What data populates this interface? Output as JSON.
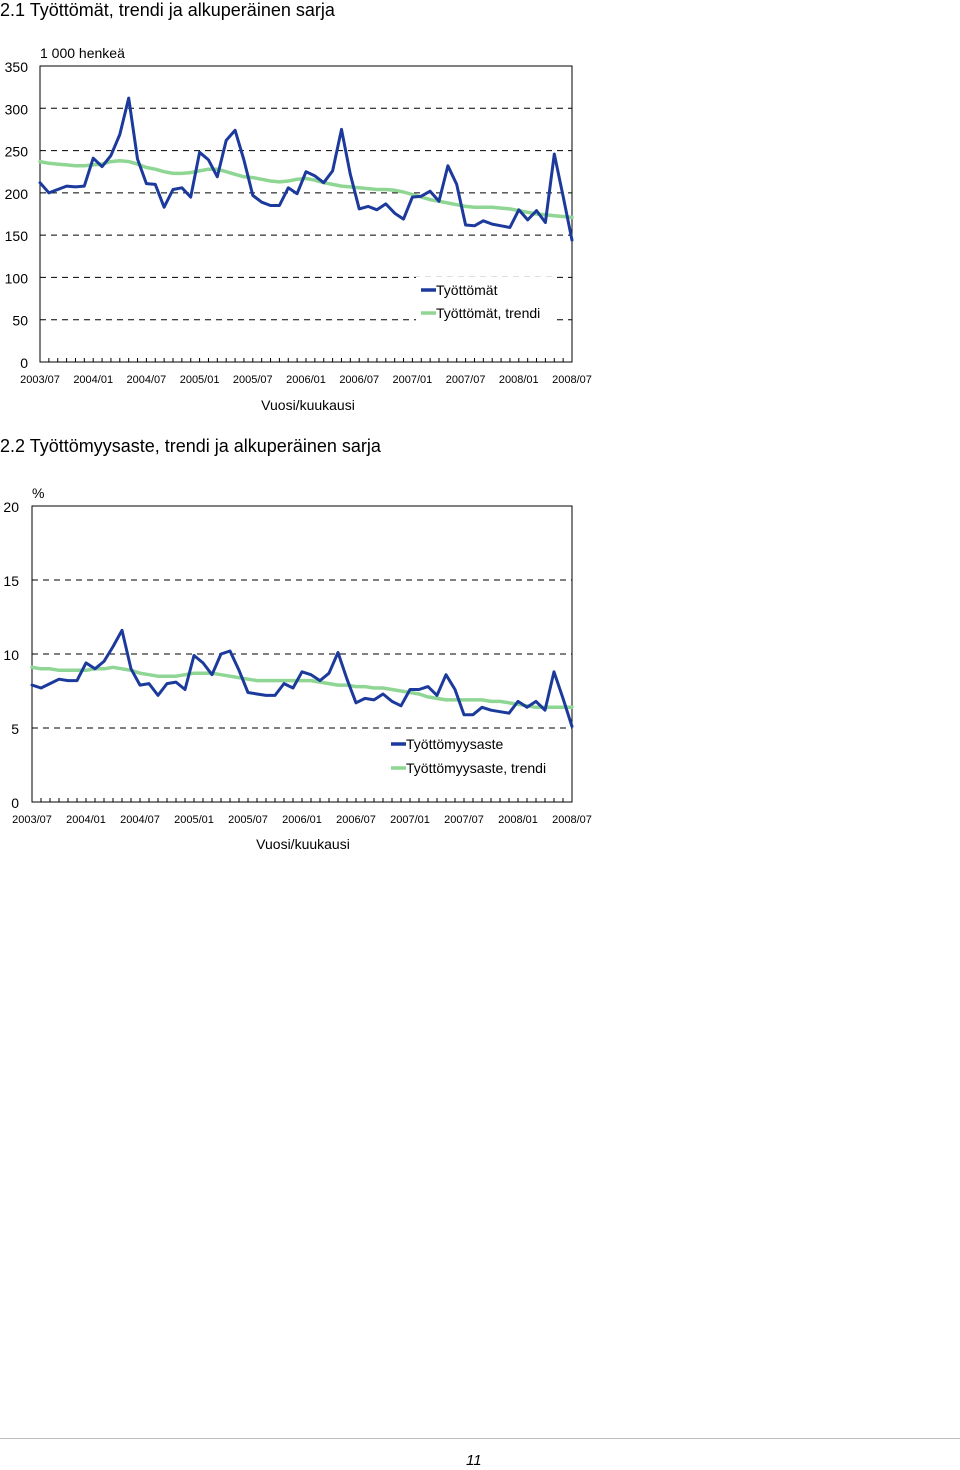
{
  "headings": {
    "chart1": "2.1 Työttömät, trendi ja alkuperäinen sarja",
    "chart2": "2.2 Työttömyysaste, trendi ja alkuperäinen sarja"
  },
  "page_number": "11",
  "colors": {
    "original": "#1b3a9c",
    "trend": "#8fd694",
    "grid": "#000000"
  },
  "chart_data": [
    {
      "type": "line",
      "title": "2.1 Työttömät, trendi ja alkuperäinen sarja",
      "ylabel": "1 000 henkeä",
      "xlabel": "Vuosi/kuukausi",
      "ylim": [
        0,
        350
      ],
      "yticks": [
        0,
        50,
        100,
        150,
        200,
        250,
        300,
        350
      ],
      "x_tick_labels": [
        "2003/07",
        "2004/01",
        "2004/07",
        "2005/01",
        "2005/07",
        "2006/01",
        "2006/07",
        "2007/01",
        "2007/07",
        "2008/01",
        "2008/07"
      ],
      "x_start": "2003/07",
      "x_end": "2008/07",
      "grid": "horizontal dashed",
      "legend": "lower-right",
      "series": [
        {
          "name": "Työttömät",
          "values": [
            212,
            200,
            204,
            208,
            207,
            208,
            241,
            231,
            244,
            269,
            312,
            240,
            211,
            210,
            183,
            204,
            206,
            195,
            248,
            239,
            219,
            262,
            274,
            239,
            197,
            189,
            185,
            185,
            206,
            199,
            225,
            220,
            212,
            226,
            275,
            222,
            181,
            184,
            180,
            187,
            176,
            169,
            195,
            196,
            202,
            190,
            232,
            210,
            162,
            161,
            167,
            163,
            161,
            159,
            180,
            168,
            179,
            165,
            246,
            196,
            144
          ]
        },
        {
          "name": "Työttömät, trendi",
          "values": [
            237,
            235,
            234,
            233,
            232,
            232,
            233,
            234,
            237,
            238,
            237,
            234,
            230,
            228,
            225,
            223,
            223,
            224,
            226,
            228,
            228,
            225,
            222,
            219,
            218,
            216,
            214,
            213,
            214,
            216,
            217,
            215,
            212,
            210,
            208,
            207,
            206,
            205,
            204,
            204,
            203,
            201,
            198,
            195,
            192,
            190,
            188,
            186,
            184,
            183,
            183,
            183,
            182,
            181,
            179,
            177,
            175,
            174,
            173,
            172,
            171
          ]
        }
      ]
    },
    {
      "type": "line",
      "title": "2.2 Työttömyysaste, trendi ja alkuperäinen sarja",
      "ylabel": "%",
      "xlabel": "Vuosi/kuukausi",
      "ylim": [
        0,
        20
      ],
      "yticks": [
        0,
        5,
        10,
        15,
        20
      ],
      "x_tick_labels": [
        "2003/07",
        "2004/01",
        "2004/07",
        "2005/01",
        "2005/07",
        "2006/01",
        "2006/07",
        "2007/01",
        "2007/07",
        "2008/01",
        "2008/07"
      ],
      "x_start": "2003/07",
      "x_end": "2008/07",
      "grid": "horizontal dashed",
      "legend": "lower-right",
      "series": [
        {
          "name": "Työttömyysaste",
          "values": [
            7.9,
            7.7,
            8.0,
            8.3,
            8.2,
            8.2,
            9.4,
            9.0,
            9.5,
            10.5,
            11.6,
            9.0,
            7.9,
            8.0,
            7.2,
            8.0,
            8.1,
            7.6,
            9.9,
            9.4,
            8.6,
            10.0,
            10.2,
            8.9,
            7.4,
            7.3,
            7.2,
            7.2,
            8.0,
            7.7,
            8.8,
            8.6,
            8.2,
            8.7,
            10.1,
            8.3,
            6.7,
            7.0,
            6.9,
            7.3,
            6.8,
            6.5,
            7.6,
            7.6,
            7.8,
            7.2,
            8.6,
            7.6,
            5.9,
            5.9,
            6.4,
            6.2,
            6.1,
            6.0,
            6.8,
            6.4,
            6.8,
            6.2,
            8.8,
            7.0,
            5.1
          ]
        },
        {
          "name": "Työttömyysaste, trendi",
          "values": [
            9.1,
            9.0,
            9.0,
            8.9,
            8.9,
            8.9,
            8.9,
            9.0,
            9.0,
            9.1,
            9.0,
            8.9,
            8.7,
            8.6,
            8.5,
            8.5,
            8.5,
            8.6,
            8.7,
            8.7,
            8.7,
            8.6,
            8.5,
            8.4,
            8.3,
            8.2,
            8.2,
            8.2,
            8.2,
            8.2,
            8.2,
            8.2,
            8.1,
            8.0,
            7.9,
            7.9,
            7.8,
            7.8,
            7.7,
            7.7,
            7.6,
            7.5,
            7.4,
            7.3,
            7.1,
            7.0,
            6.9,
            6.9,
            6.9,
            6.9,
            6.9,
            6.8,
            6.8,
            6.7,
            6.6,
            6.5,
            6.4,
            6.4,
            6.4,
            6.4,
            6.4
          ]
        }
      ]
    }
  ]
}
